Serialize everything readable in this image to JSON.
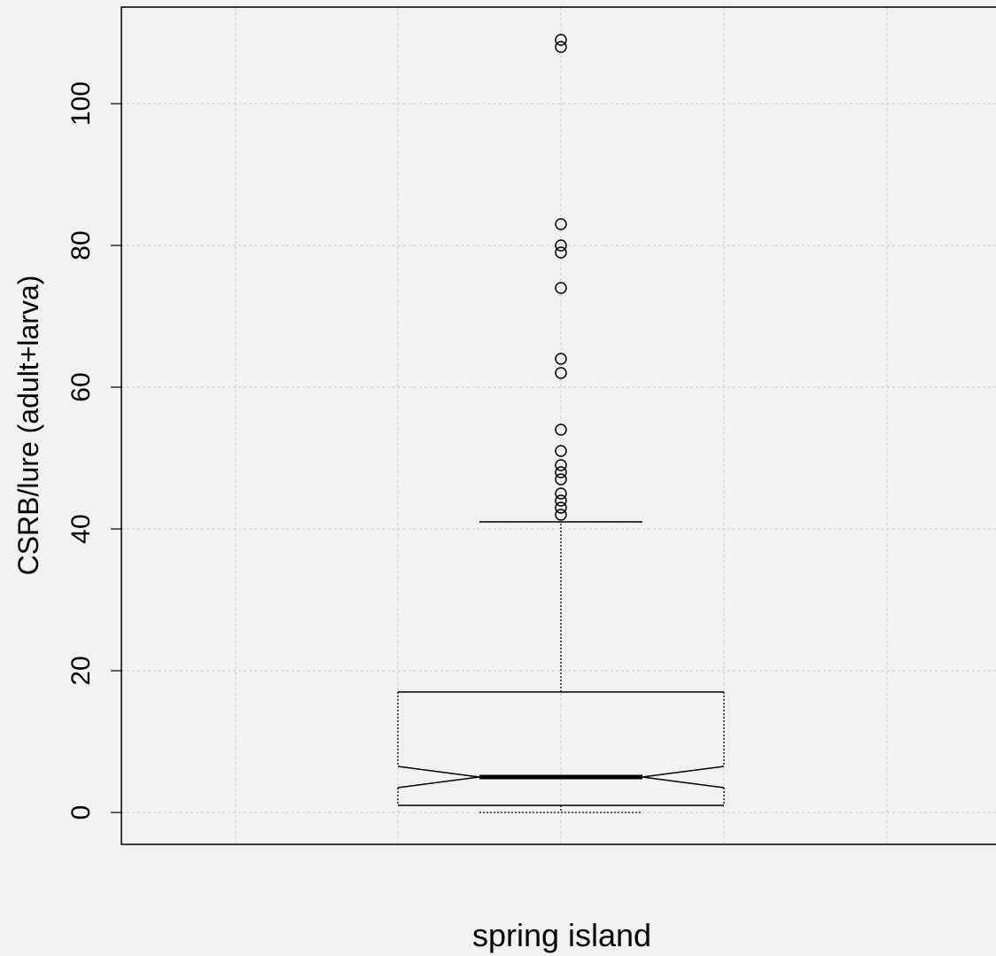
{
  "chart_data": {
    "type": "boxplot",
    "title": "",
    "xlabel": "spring island",
    "ylabel": "CSRB/lure (adult+larva)",
    "ylim": [
      -9,
      114
    ],
    "yticks": [
      "0",
      "20",
      "40",
      "60",
      "80",
      "100"
    ],
    "grid": true,
    "notched": true,
    "box": {
      "min": 0,
      "q1": 1,
      "median": 5,
      "q3": 17,
      "upper_whisker": 41,
      "notch_low": 3.5,
      "notch_high": 6.5
    },
    "outliers": [
      42,
      43,
      44,
      45,
      47,
      48,
      49,
      51,
      54,
      62,
      64,
      74,
      79,
      80,
      83,
      108,
      109
    ]
  }
}
